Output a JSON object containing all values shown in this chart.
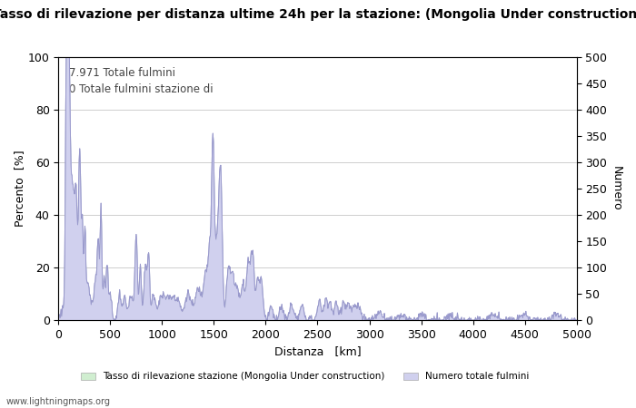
{
  "title": "Tasso di rilevazione per distanza ultime 24h per la stazione: (Mongolia Under construction)",
  "xlabel": "Distanza   [km]",
  "ylabel_left": "Percento  [%]",
  "ylabel_right": "Numero",
  "annotation1": "7.971 Totale fulmini",
  "annotation2": "0 Totale fulmini stazione di",
  "legend_green": "Tasso di rilevazione stazione (Mongolia Under construction)",
  "legend_blue": "Numero totale fulmini",
  "watermark": "www.lightningmaps.org",
  "xlim": [
    0,
    5000
  ],
  "ylim_left": [
    0,
    100
  ],
  "ylim_right": [
    0,
    500
  ],
  "x_ticks": [
    0,
    500,
    1000,
    1500,
    2000,
    2500,
    3000,
    3500,
    4000,
    4500,
    5000
  ],
  "y_ticks_left": [
    0,
    20,
    40,
    60,
    80,
    100
  ],
  "y_ticks_right": [
    0,
    50,
    100,
    150,
    200,
    250,
    300,
    350,
    400,
    450,
    500
  ],
  "line_color": "#9999cc",
  "fill_blue_color": "#d0d0ee",
  "fill_green_color": "#d0eed0",
  "background_color": "#ffffff",
  "grid_color": "#bbbbbb",
  "title_fontsize": 10,
  "label_fontsize": 9,
  "tick_fontsize": 9,
  "annotation_fontsize": 8.5
}
